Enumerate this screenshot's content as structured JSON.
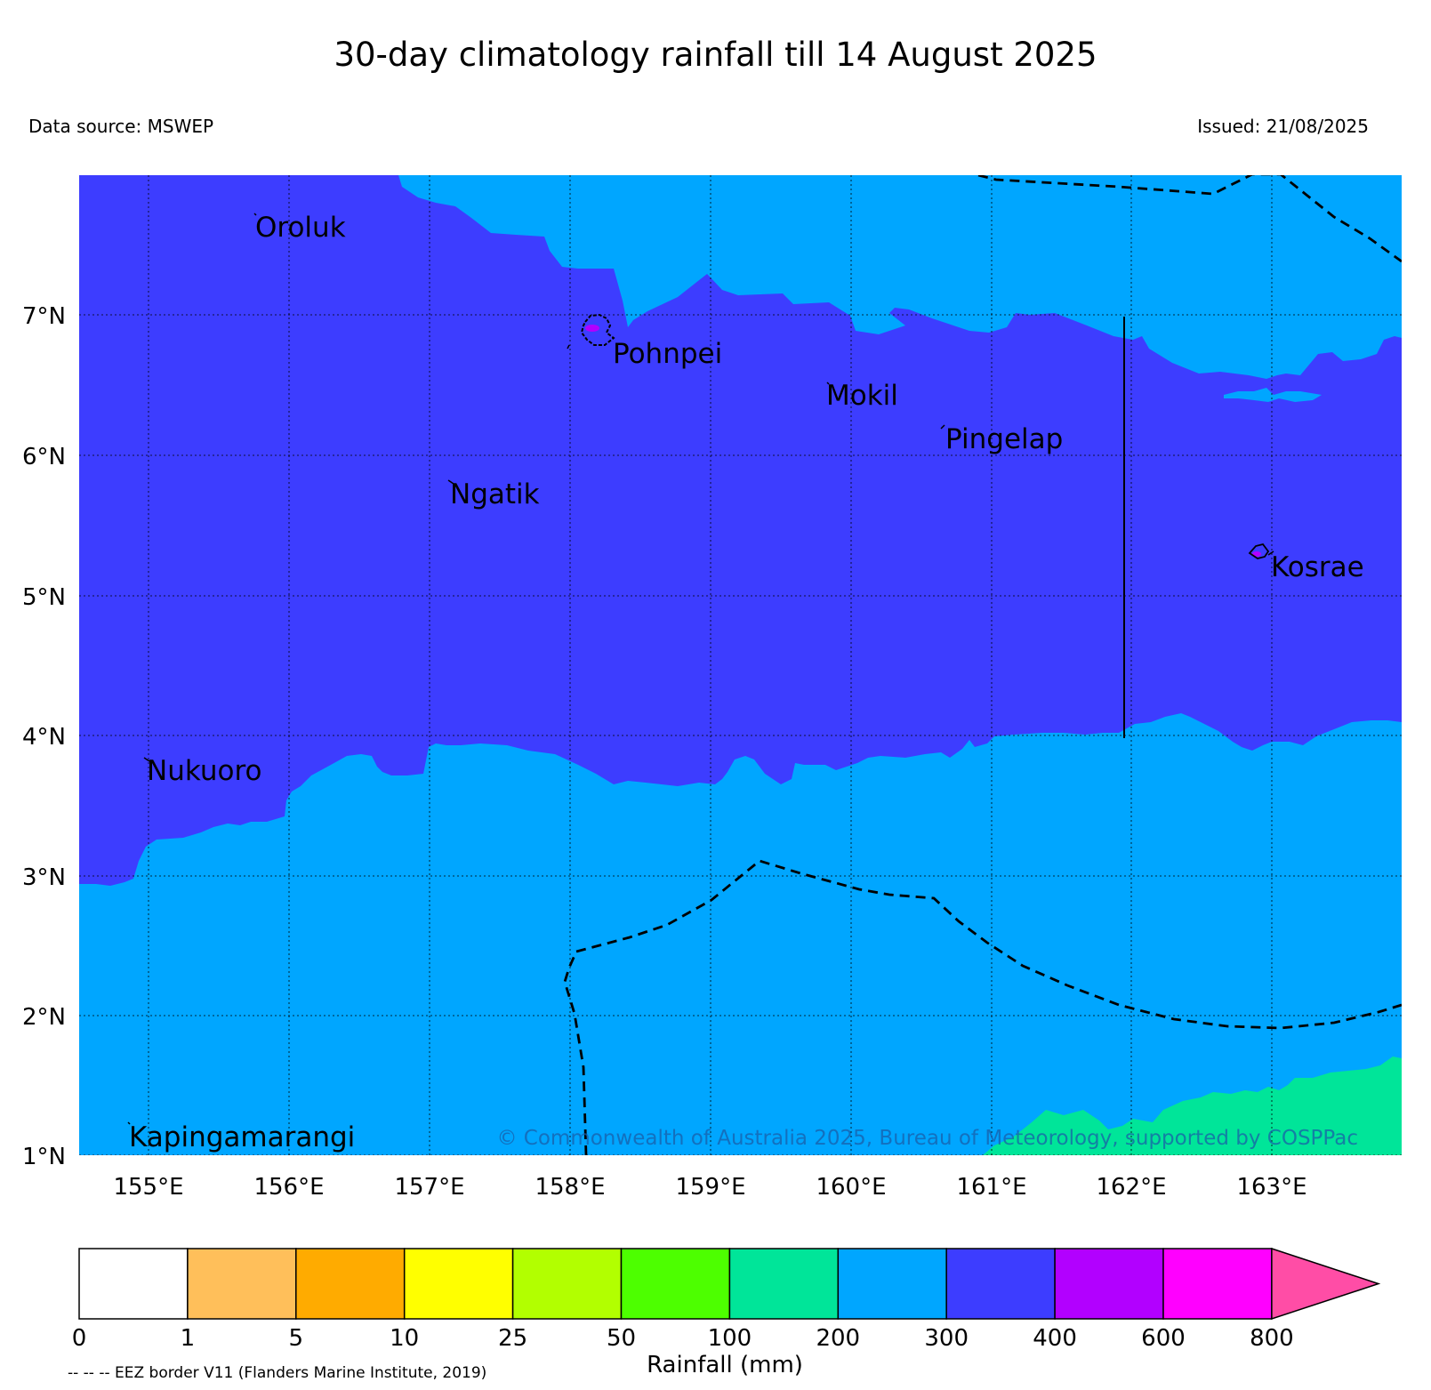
{
  "title": "30-day climatology rainfall till 14 August 2025",
  "data_source": "Data source: MSWEP",
  "issued": "Issued: 21/08/2025",
  "copyright": "© Commonwealth of Australia 2025, Bureau of Meteorology, supported by COSPPac",
  "eez_note": "-- -- -- EEZ border V11 (Flanders Marine Institute, 2019)",
  "map": {
    "lat_ticks": [
      "7°N",
      "6°N",
      "5°N",
      "4°N",
      "3°N",
      "2°N",
      "1°N"
    ],
    "lon_ticks": [
      "155°E",
      "156°E",
      "157°E",
      "158°E",
      "159°E",
      "160°E",
      "161°E",
      "162°E",
      "163°E"
    ],
    "places": [
      {
        "name": "Oroluk"
      },
      {
        "name": "Pohnpei"
      },
      {
        "name": "Mokil"
      },
      {
        "name": "Pingelap"
      },
      {
        "name": "Ngatik"
      },
      {
        "name": "Kosrae"
      },
      {
        "name": "Nukuoro"
      },
      {
        "name": "Kapingamarangi"
      }
    ],
    "colors": {
      "300-400": "#3d3dff",
      "200-300": "#00a6ff",
      "100-200": "#00e599",
      "400-600": "#b200ff"
    }
  },
  "colorbar": {
    "label": "Rainfall (mm)",
    "ticks": [
      "0",
      "1",
      "5",
      "10",
      "25",
      "50",
      "100",
      "200",
      "300",
      "400",
      "600",
      "800"
    ],
    "colors": [
      "#ffffff",
      "#ffbf5a",
      "#ffab00",
      "#ffff00",
      "#b2ff00",
      "#4dff00",
      "#00e599",
      "#00a6ff",
      "#3d3dff",
      "#b200ff",
      "#ff00ff"
    ],
    "extend_color": "#ff4da6"
  }
}
